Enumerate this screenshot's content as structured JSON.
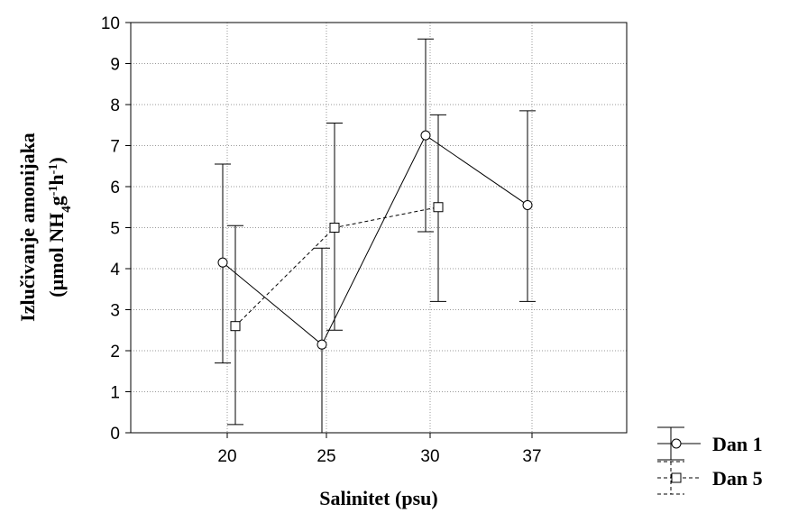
{
  "chart_data": {
    "type": "line",
    "xlabel": "Salinitet (psu)",
    "ylabel_line1": "Izlučivanje amonijaka",
    "ylabel_line2_prefix": "(µmol NH",
    "ylabel_sub": "4",
    "ylabel_mid1": "g",
    "ylabel_sup1": "-1",
    "ylabel_mid2": "h",
    "ylabel_sup2": "-1",
    "ylabel_suffix": ")",
    "categories": [
      "20",
      "25",
      "30",
      "37"
    ],
    "ylim": [
      0,
      10
    ],
    "yticks": [
      "0",
      "1",
      "2",
      "3",
      "4",
      "5",
      "6",
      "7",
      "8",
      "9",
      "10"
    ],
    "grid": true,
    "legend_position": "bottom-right, outside",
    "series": [
      {
        "name": "Dan 1",
        "marker": "circle",
        "line_style": "solid",
        "values": [
          4.15,
          2.15,
          7.25,
          5.55
        ],
        "err_low": [
          1.7,
          0.0,
          4.9,
          3.2
        ],
        "err_high": [
          6.55,
          4.5,
          9.6,
          7.85
        ]
      },
      {
        "name": "Dan 5",
        "marker": "square",
        "line_style": "dashed",
        "values": [
          2.6,
          5.0,
          5.5,
          null
        ],
        "err_low": [
          0.2,
          2.5,
          3.2,
          null
        ],
        "err_high": [
          5.05,
          7.55,
          7.75,
          null
        ]
      }
    ]
  }
}
